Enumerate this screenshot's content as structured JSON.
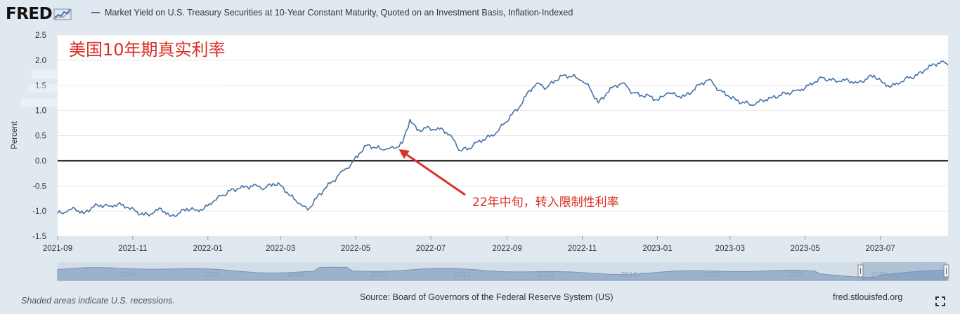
{
  "header": {
    "logo_text": "FRED",
    "legend_label": "Market Yield on U.S. Treasury Securities at 10-Year Constant Maturity, Quoted on an Investment Basis, Inflation-Indexed"
  },
  "footer": {
    "note": "Shaded areas indicate U.S. recessions.",
    "source": "Source: Board of Governors of the Federal Reserve System (US)",
    "site": "fred.stlouisfed.org"
  },
  "colors": {
    "series": "#4572a7",
    "annotation": "#d93025",
    "zero_line": "#000000",
    "grid": "#e6e6e6",
    "navigator_fill": "#9bb2cc"
  },
  "icons": {
    "fullscreen": "fullscreen-icon",
    "logo_graph": "chart-graph-icon"
  },
  "chart_data": {
    "type": "line",
    "ylabel": "Percent",
    "ylim": [
      -1.5,
      2.5
    ],
    "y_ticks": [
      "2.5",
      "2.0",
      "1.5",
      "1.0",
      "0.5",
      "0.0",
      "-0.5",
      "-1.0",
      "-1.5"
    ],
    "x_range": [
      "2021-09-01",
      "2023-08-25"
    ],
    "x_ticks": [
      {
        "date": "2021-09-01",
        "label": "2021-09"
      },
      {
        "date": "2021-11-01",
        "label": "2021-11"
      },
      {
        "date": "2022-01-01",
        "label": "2022-01"
      },
      {
        "date": "2022-03-01",
        "label": "2022-03"
      },
      {
        "date": "2022-05-01",
        "label": "2022-05"
      },
      {
        "date": "2022-07-01",
        "label": "2022-07"
      },
      {
        "date": "2022-09-01",
        "label": "2022-09"
      },
      {
        "date": "2022-11-01",
        "label": "2022-11"
      },
      {
        "date": "2023-01-01",
        "label": "2023-01"
      },
      {
        "date": "2023-03-01",
        "label": "2023-03"
      },
      {
        "date": "2023-05-01",
        "label": "2023-05"
      },
      {
        "date": "2023-07-01",
        "label": "2023-07"
      }
    ],
    "zero_line": 0,
    "grid": true,
    "series": [
      {
        "dates": [
          "2021-09-01",
          "2021-09-08",
          "2021-09-15",
          "2021-09-22",
          "2021-09-29",
          "2021-10-06",
          "2021-10-13",
          "2021-10-20",
          "2021-10-27",
          "2021-11-03",
          "2021-11-10",
          "2021-11-17",
          "2021-11-24",
          "2021-12-01",
          "2021-12-08",
          "2021-12-15",
          "2021-12-22",
          "2021-12-29",
          "2022-01-05",
          "2022-01-12",
          "2022-01-19",
          "2022-01-26",
          "2022-02-02",
          "2022-02-09",
          "2022-02-16",
          "2022-02-23",
          "2022-03-02",
          "2022-03-09",
          "2022-03-16",
          "2022-03-23",
          "2022-03-30",
          "2022-04-06",
          "2022-04-13",
          "2022-04-20",
          "2022-04-27",
          "2022-05-04",
          "2022-05-11",
          "2022-05-18",
          "2022-05-25",
          "2022-06-01",
          "2022-06-08",
          "2022-06-14",
          "2022-06-20",
          "2022-06-27",
          "2022-07-04",
          "2022-07-11",
          "2022-07-18",
          "2022-07-25",
          "2022-08-01",
          "2022-08-08",
          "2022-08-15",
          "2022-08-22",
          "2022-08-29",
          "2022-09-05",
          "2022-09-12",
          "2022-09-19",
          "2022-09-26",
          "2022-10-03",
          "2022-10-10",
          "2022-10-17",
          "2022-10-24",
          "2022-10-31",
          "2022-11-07",
          "2022-11-14",
          "2022-11-21",
          "2022-11-28",
          "2022-12-05",
          "2022-12-12",
          "2022-12-19",
          "2022-12-26",
          "2023-01-02",
          "2023-01-09",
          "2023-01-16",
          "2023-01-23",
          "2023-01-30",
          "2023-02-06",
          "2023-02-13",
          "2023-02-20",
          "2023-02-27",
          "2023-03-06",
          "2023-03-13",
          "2023-03-20",
          "2023-03-27",
          "2023-04-03",
          "2023-04-10",
          "2023-04-17",
          "2023-04-24",
          "2023-05-01",
          "2023-05-08",
          "2023-05-15",
          "2023-05-22",
          "2023-05-29",
          "2023-06-05",
          "2023-06-12",
          "2023-06-19",
          "2023-06-26",
          "2023-07-03",
          "2023-07-10",
          "2023-07-17",
          "2023-07-24",
          "2023-07-31",
          "2023-08-07",
          "2023-08-14",
          "2023-08-21",
          "2023-08-25"
        ],
        "values": [
          -1.05,
          -1.02,
          -0.95,
          -1.05,
          -0.92,
          -0.88,
          -0.9,
          -0.86,
          -0.92,
          -1.0,
          -1.08,
          -1.05,
          -0.95,
          -1.1,
          -1.05,
          -0.95,
          -0.98,
          -0.95,
          -0.82,
          -0.7,
          -0.6,
          -0.55,
          -0.52,
          -0.48,
          -0.55,
          -0.45,
          -0.5,
          -0.7,
          -0.85,
          -0.98,
          -0.75,
          -0.55,
          -0.4,
          -0.2,
          -0.08,
          0.15,
          0.32,
          0.25,
          0.22,
          0.25,
          0.35,
          0.82,
          0.6,
          0.65,
          0.62,
          0.62,
          0.48,
          0.2,
          0.25,
          0.38,
          0.45,
          0.52,
          0.72,
          0.92,
          1.1,
          1.4,
          1.55,
          1.45,
          1.6,
          1.7,
          1.68,
          1.6,
          1.45,
          1.15,
          1.35,
          1.5,
          1.55,
          1.35,
          1.3,
          1.28,
          1.2,
          1.35,
          1.3,
          1.28,
          1.4,
          1.55,
          1.62,
          1.4,
          1.3,
          1.2,
          1.15,
          1.1,
          1.2,
          1.25,
          1.3,
          1.35,
          1.4,
          1.45,
          1.55,
          1.65,
          1.6,
          1.58,
          1.6,
          1.55,
          1.62,
          1.7,
          1.55,
          1.48,
          1.55,
          1.65,
          1.7,
          1.82,
          1.92,
          1.98,
          1.9
        ]
      }
    ],
    "annotations": [
      {
        "text": "美国10年期真实利率",
        "kind": "title-overlay"
      },
      {
        "text": "22年中旬，转入限制性利率",
        "kind": "arrow",
        "target_date": "2022-06-05",
        "target_value": 0.23
      }
    ],
    "navigator": {
      "labels": [
        "2004",
        "2006",
        "2008",
        "2010",
        "2012",
        "2014",
        "2016",
        "2018",
        "2020",
        "2022"
      ]
    }
  }
}
